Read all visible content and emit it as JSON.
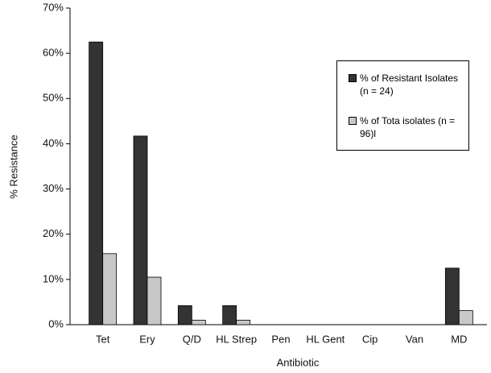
{
  "chart_data": {
    "type": "bar",
    "x_label": "Antibiotic",
    "y_label": "% Resistance",
    "categories": [
      "Tet",
      "Ery",
      "Q/D",
      "HL Strep",
      "Pen",
      "HL Gent",
      "Cip",
      "Van",
      "MD"
    ],
    "series": [
      {
        "name": "% of Resistant Isolates (n = 24)",
        "color": "#333333",
        "values": [
          62.5,
          41.7,
          4.2,
          4.2,
          0,
          0,
          0,
          0,
          12.5
        ]
      },
      {
        "name": "% of Tota isolates (n = 96)l",
        "color": "#c8c8c8",
        "values": [
          15.7,
          10.5,
          1.0,
          1.0,
          0,
          0,
          0,
          0,
          3.1
        ]
      }
    ],
    "ylim": [
      0,
      70
    ],
    "yticks": [
      {
        "value": 0,
        "label": "0%"
      },
      {
        "value": 10,
        "label": "10%"
      },
      {
        "value": 20,
        "label": "20%"
      },
      {
        "value": 30,
        "label": "30%"
      },
      {
        "value": 40,
        "label": "40%"
      },
      {
        "value": 50,
        "label": "50%"
      },
      {
        "value": 60,
        "label": "60%"
      },
      {
        "value": 70,
        "label": "70%"
      }
    ],
    "legend": "upper right"
  }
}
